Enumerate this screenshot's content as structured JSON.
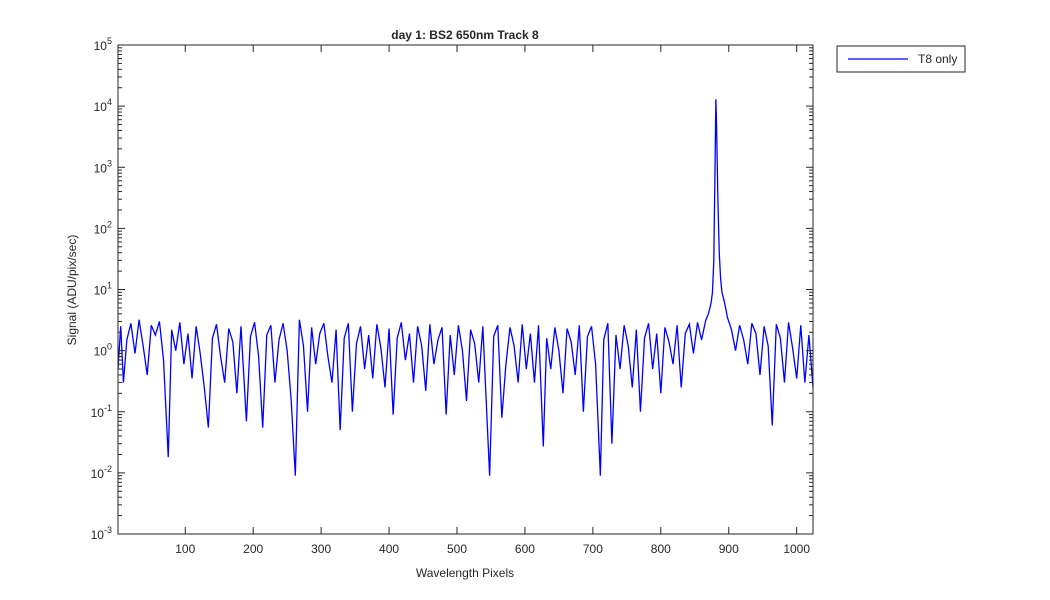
{
  "chart_data": {
    "type": "line",
    "title": "day 1: BS2  650nm  Track 8",
    "xlabel": "Wavelength Pixels",
    "ylabel": "Signal (ADU/pix/sec)",
    "log_y": true,
    "grid": false,
    "legend_position": "outside-right",
    "xlim": [
      1,
      1024
    ],
    "ylim": [
      0.001,
      100000
    ],
    "xticks": [
      100,
      200,
      300,
      400,
      500,
      600,
      700,
      800,
      900,
      1000
    ],
    "yticks": [
      {
        "value": 0.001,
        "label": "10^-3"
      },
      {
        "value": 0.01,
        "label": "10^-2"
      },
      {
        "value": 0.1,
        "label": "10^-1"
      },
      {
        "value": 1,
        "label": "10^0"
      },
      {
        "value": 10,
        "label": "10^1"
      },
      {
        "value": 100,
        "label": "10^2"
      },
      {
        "value": 1000,
        "label": "10^3"
      },
      {
        "value": 10000,
        "label": "10^4"
      },
      {
        "value": 100000,
        "label": "10^5"
      }
    ],
    "x": [
      1,
      5,
      9,
      14,
      20,
      26,
      32,
      38,
      44,
      50,
      56,
      62,
      68,
      75,
      80,
      86,
      92,
      98,
      104,
      110,
      116,
      122,
      128,
      134,
      140,
      146,
      152,
      158,
      164,
      170,
      176,
      182,
      190,
      196,
      202,
      208,
      214,
      220,
      226,
      232,
      238,
      244,
      250,
      256,
      262,
      268,
      274,
      280,
      286,
      292,
      298,
      304,
      310,
      316,
      322,
      328,
      334,
      340,
      346,
      352,
      358,
      364,
      370,
      376,
      382,
      388,
      394,
      400,
      406,
      412,
      418,
      424,
      430,
      436,
      442,
      448,
      454,
      460,
      466,
      472,
      478,
      484,
      490,
      496,
      502,
      508,
      514,
      520,
      526,
      532,
      538,
      548,
      554,
      560,
      566,
      572,
      578,
      584,
      590,
      596,
      602,
      608,
      614,
      620,
      627,
      632,
      638,
      644,
      650,
      656,
      662,
      668,
      674,
      680,
      686,
      692,
      698,
      704,
      711,
      716,
      722,
      728,
      734,
      740,
      746,
      752,
      758,
      764,
      770,
      776,
      782,
      788,
      794,
      800,
      806,
      812,
      818,
      824,
      830,
      836,
      842,
      848,
      854,
      860,
      866,
      870,
      874,
      876,
      878,
      880,
      881,
      882,
      884,
      886,
      888,
      890,
      894,
      898,
      904,
      910,
      916,
      922,
      928,
      934,
      940,
      946,
      952,
      958,
      964,
      970,
      976,
      982,
      988,
      994,
      1000,
      1006,
      1012,
      1018,
      1024
    ],
    "series": [
      {
        "name": "T8 only",
        "color": "#0000ff",
        "values": [
          0.5,
          2.5,
          0.3,
          1.5,
          2.8,
          0.9,
          3.2,
          1.2,
          0.4,
          2.6,
          1.8,
          3.0,
          0.7,
          0.018,
          2.2,
          1.0,
          2.9,
          0.6,
          1.9,
          0.35,
          2.5,
          0.9,
          0.25,
          0.055,
          1.6,
          2.7,
          0.8,
          0.3,
          2.3,
          1.4,
          0.2,
          2.5,
          0.07,
          1.7,
          2.9,
          0.8,
          0.055,
          1.8,
          2.6,
          0.3,
          1.5,
          2.8,
          1.0,
          0.15,
          0.009,
          3.2,
          1.2,
          0.1,
          2.4,
          0.6,
          1.9,
          2.8,
          0.8,
          0.3,
          2.2,
          0.05,
          1.6,
          2.8,
          0.1,
          1.3,
          2.5,
          0.5,
          1.8,
          0.35,
          2.7,
          1.1,
          0.25,
          2.3,
          0.09,
          1.6,
          2.9,
          0.7,
          1.9,
          0.3,
          2.5,
          1.2,
          0.22,
          2.7,
          0.6,
          1.5,
          2.4,
          0.09,
          1.8,
          0.4,
          2.6,
          1.0,
          0.15,
          2.2,
          1.3,
          0.3,
          2.5,
          0.009,
          1.7,
          2.6,
          0.08,
          0.6,
          2.4,
          1.2,
          0.3,
          2.7,
          0.5,
          1.9,
          0.3,
          2.6,
          0.027,
          1.6,
          0.5,
          2.4,
          1.0,
          0.2,
          2.3,
          1.4,
          0.4,
          2.6,
          0.1,
          1.7,
          2.5,
          0.6,
          0.009,
          1.5,
          2.8,
          0.03,
          1.8,
          0.5,
          2.6,
          1.2,
          0.25,
          2.2,
          0.1,
          1.6,
          2.8,
          0.5,
          1.9,
          0.2,
          2.4,
          1.4,
          0.6,
          2.6,
          0.25,
          1.9,
          2.7,
          0.9,
          2.9,
          1.5,
          3.1,
          4.0,
          6.0,
          9.0,
          30,
          1500,
          13000,
          5000,
          300,
          40,
          15,
          9,
          6,
          3.5,
          2.2,
          1.0,
          2.6,
          1.5,
          0.6,
          2.8,
          1.9,
          0.4,
          2.5,
          1.2,
          0.06,
          2.7,
          1.6,
          0.3,
          2.9,
          1.1,
          0.35,
          2.6,
          0.3,
          1.8,
          0.25
        ]
      }
    ]
  }
}
